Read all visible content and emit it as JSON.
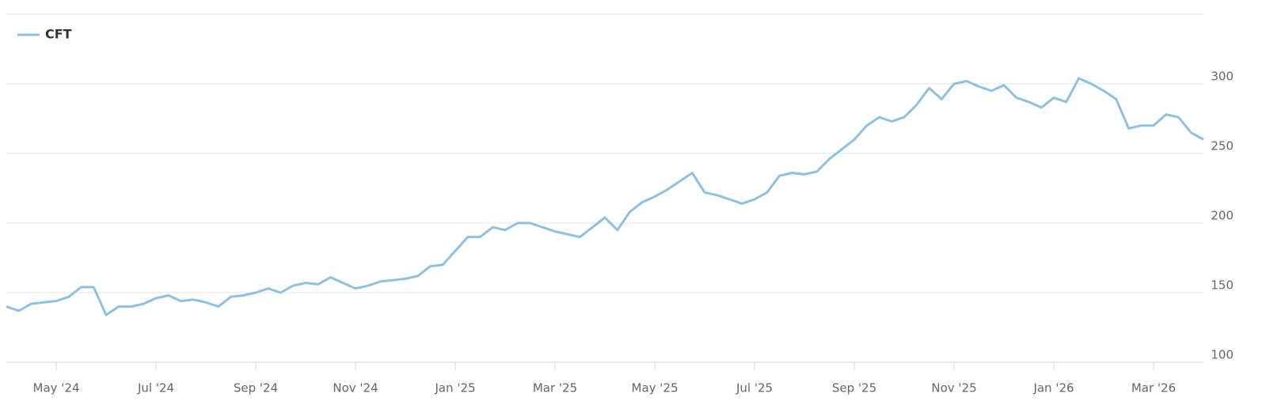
{
  "chart_data": {
    "type": "line",
    "legend_position": "top-left",
    "grid": true,
    "x": [
      0,
      0.25,
      0.5,
      0.75,
      1,
      1.25,
      1.5,
      1.75,
      2,
      2.25,
      2.5,
      2.75,
      3,
      3.25,
      3.5,
      3.75,
      4,
      4.25,
      4.5,
      4.75,
      5,
      5.25,
      5.5,
      5.75,
      6,
      6.25,
      6.5,
      6.75,
      7,
      7.25,
      7.5,
      7.75,
      8,
      8.25,
      8.5,
      8.75,
      9,
      9.25,
      9.5,
      9.75,
      10,
      10.25,
      10.5,
      10.75,
      11,
      11.25,
      11.5,
      11.75,
      12,
      12.25,
      12.5,
      12.75,
      13,
      13.25,
      13.5,
      13.75,
      14,
      14.25,
      14.5,
      14.75,
      15,
      15.25,
      15.5,
      15.75,
      16,
      16.25,
      16.5,
      16.75,
      17,
      17.25,
      17.5,
      17.75,
      18,
      18.25,
      18.5,
      18.75,
      19,
      19.25,
      19.5,
      19.75,
      20,
      20.25,
      20.5,
      20.75,
      21,
      21.25,
      21.5,
      21.75,
      22,
      22.25,
      22.5,
      22.75,
      23,
      23.25,
      23.5,
      23.75,
      24
    ],
    "series": [
      {
        "name": "CFT",
        "color": "#8ec1e0",
        "values": [
          140,
          137,
          142,
          143,
          144,
          147,
          154,
          154,
          134,
          140,
          140,
          142,
          146,
          148,
          144,
          145,
          143,
          140,
          147,
          148,
          150,
          153,
          150,
          155,
          157,
          156,
          161,
          157,
          153,
          155,
          158,
          159,
          160,
          162,
          169,
          170,
          180,
          190,
          190,
          197,
          195,
          200,
          200,
          197,
          194,
          192,
          190,
          197,
          204,
          195,
          208,
          215,
          219,
          224,
          230,
          236,
          222,
          220,
          217,
          214,
          217,
          222,
          234,
          236,
          235,
          237,
          246,
          253,
          260,
          270,
          276,
          273,
          276,
          285,
          297,
          289,
          300,
          302,
          298,
          295,
          299,
          290,
          287,
          283,
          290,
          287,
          304,
          300,
          295,
          289,
          268,
          270,
          270,
          278,
          276,
          265,
          260
        ]
      }
    ],
    "xlim": [
      0,
      24
    ],
    "xticks": [
      {
        "value": 1,
        "label": "May '24"
      },
      {
        "value": 3,
        "label": "Jul '24"
      },
      {
        "value": 5,
        "label": "Sep '24"
      },
      {
        "value": 7,
        "label": "Nov '24"
      },
      {
        "value": 9,
        "label": "Jan '25"
      },
      {
        "value": 11,
        "label": "Mar '25"
      },
      {
        "value": 13,
        "label": "May '25"
      },
      {
        "value": 15,
        "label": "Jul '25"
      },
      {
        "value": 17,
        "label": "Sep '25"
      },
      {
        "value": 19,
        "label": "Nov '25"
      },
      {
        "value": 21,
        "label": "Jan '26"
      },
      {
        "value": 23,
        "label": "Mar '26"
      }
    ],
    "ylim": [
      100,
      350
    ],
    "yticks": [
      100,
      150,
      200,
      250,
      300
    ]
  }
}
